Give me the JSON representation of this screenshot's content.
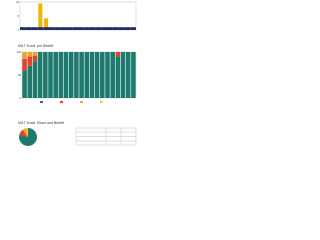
{
  "chart_data": [
    {
      "type": "bar",
      "categories": [
        null,
        null,
        null,
        null,
        null,
        null,
        null,
        null,
        null,
        null,
        null,
        null,
        null,
        null,
        null,
        null,
        null,
        null,
        null,
        null
      ],
      "series": [
        {
          "color": "#f2b705",
          "values": [
            0.3,
            0.2,
            0.4,
            9.5,
            4.2,
            0.3,
            0.2,
            0.3,
            0.2,
            0.4,
            0.3,
            0.2,
            0.3,
            0.2,
            0.4,
            0.3,
            0.2,
            0.5,
            0.3,
            0.2
          ]
        },
        {
          "color": "#1f2a6b",
          "values": [
            1,
            1,
            1,
            1,
            1,
            1,
            1,
            1,
            1,
            1,
            1,
            1,
            1,
            1,
            1,
            1,
            1,
            1,
            1,
            1
          ]
        }
      ],
      "ylim": [
        0,
        10
      ],
      "yticks": [
        0,
        5,
        10
      ]
    },
    {
      "type": "stacked-bar",
      "title": "MILT Excel, per Bedrift",
      "categories": [
        null,
        null,
        null,
        null,
        null,
        null,
        null,
        null,
        null,
        null,
        null,
        null,
        null,
        null,
        null,
        null,
        null,
        null,
        null,
        null,
        null,
        null
      ],
      "series": [
        {
          "color": "#1f7a6e",
          "values": [
            60,
            70,
            80,
            100,
            100,
            100,
            100,
            100,
            100,
            100,
            100,
            100,
            100,
            100,
            100,
            100,
            100,
            100,
            90,
            100,
            100,
            100
          ]
        },
        {
          "color": "#e0452b",
          "values": [
            25,
            20,
            12,
            0,
            0,
            0,
            0,
            0,
            0,
            0,
            0,
            0,
            0,
            0,
            0,
            0,
            0,
            0,
            10,
            0,
            0,
            0
          ]
        },
        {
          "color": "#f0a030",
          "values": [
            15,
            10,
            8,
            0,
            0,
            0,
            0,
            0,
            0,
            0,
            0,
            0,
            0,
            0,
            0,
            0,
            0,
            0,
            0,
            0,
            0,
            0
          ]
        }
      ],
      "ylim": [
        0,
        100
      ],
      "yticks": [
        0,
        50,
        100
      ]
    },
    {
      "type": "pie",
      "title": "MILT Excel, Ekser and Bedrift",
      "values": [
        80,
        10,
        7,
        3
      ],
      "colors": [
        "#1f7a6e",
        "#e0452b",
        "#f0a030",
        "#f2d22e"
      ]
    }
  ]
}
